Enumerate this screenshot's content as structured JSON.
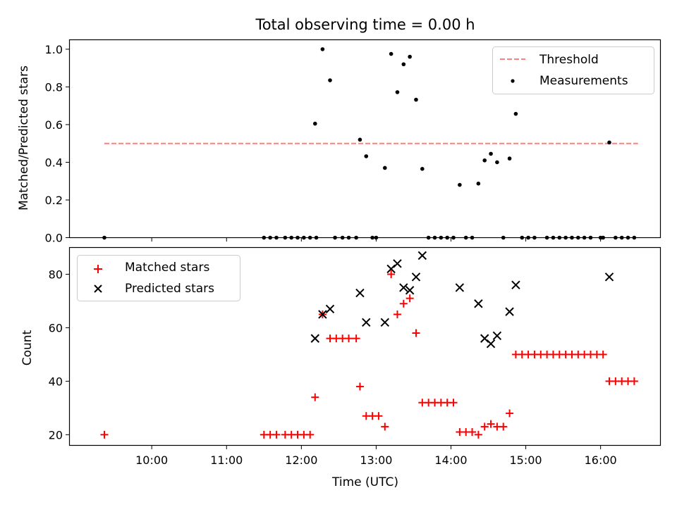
{
  "chart_data": [
    {
      "type": "scatter",
      "title": "Total observing time = 0.00 h",
      "xlabel": "",
      "ylabel": "Matched/Predicted stars",
      "ylim": [
        0,
        1.05
      ],
      "yticks": [
        "0.0",
        "0.2",
        "0.4",
        "0.6",
        "0.8",
        "1.0"
      ],
      "legend_position": "top-right",
      "threshold": {
        "name": "Threshold",
        "value": 0.5,
        "x_range": [
          "09:22",
          "16:30"
        ],
        "color": "#ff7f7f"
      },
      "series": [
        {
          "name": "Measurements",
          "color": "#000000",
          "points": [
            [
              "09:22",
              0.0
            ],
            [
              "11:30",
              0.0
            ],
            [
              "11:35",
              0.0
            ],
            [
              "11:40",
              0.0
            ],
            [
              "11:47",
              0.0
            ],
            [
              "11:52",
              0.0
            ],
            [
              "11:57",
              0.0
            ],
            [
              "12:02",
              0.0
            ],
            [
              "12:07",
              0.0
            ],
            [
              "12:12",
              0.0
            ],
            [
              "12:11",
              0.605
            ],
            [
              "12:17",
              1.0
            ],
            [
              "12:23",
              0.835
            ],
            [
              "12:27",
              0.0
            ],
            [
              "12:33",
              0.0
            ],
            [
              "12:38",
              0.0
            ],
            [
              "12:44",
              0.0
            ],
            [
              "12:47",
              0.52
            ],
            [
              "12:52",
              0.432
            ],
            [
              "12:57",
              0.0
            ],
            [
              "13:00",
              0.0
            ],
            [
              "13:07",
              0.37
            ],
            [
              "13:12",
              0.975
            ],
            [
              "13:17",
              0.772
            ],
            [
              "13:22",
              0.92
            ],
            [
              "13:27",
              0.96
            ],
            [
              "13:32",
              0.732
            ],
            [
              "13:37",
              0.365
            ],
            [
              "13:42",
              0.0
            ],
            [
              "13:47",
              0.0
            ],
            [
              "13:52",
              0.0
            ],
            [
              "13:57",
              0.0
            ],
            [
              "14:02",
              0.0
            ],
            [
              "14:07",
              0.28
            ],
            [
              "14:12",
              0.0
            ],
            [
              "14:17",
              0.0
            ],
            [
              "14:22",
              0.287
            ],
            [
              "14:27",
              0.41
            ],
            [
              "14:32",
              0.445
            ],
            [
              "14:37",
              0.4
            ],
            [
              "14:42",
              0.0
            ],
            [
              "14:47",
              0.42
            ],
            [
              "14:52",
              0.657
            ],
            [
              "14:57",
              0.0
            ],
            [
              "15:02",
              0.0
            ],
            [
              "15:07",
              0.0
            ],
            [
              "15:17",
              0.0
            ],
            [
              "15:22",
              0.0
            ],
            [
              "15:27",
              0.0
            ],
            [
              "15:32",
              0.0
            ],
            [
              "15:37",
              0.0
            ],
            [
              "15:42",
              0.0
            ],
            [
              "15:47",
              0.0
            ],
            [
              "15:52",
              0.0
            ],
            [
              "16:00",
              0.0
            ],
            [
              "16:02",
              0.0
            ],
            [
              "16:07",
              0.505
            ],
            [
              "16:12",
              0.0
            ],
            [
              "16:17",
              0.0
            ],
            [
              "16:22",
              0.0
            ],
            [
              "16:27",
              0.0
            ]
          ]
        }
      ]
    },
    {
      "type": "scatter",
      "title": "",
      "xlabel": "Time (UTC)",
      "ylabel": "Count",
      "ylim": [
        16,
        90
      ],
      "yticks": [
        "20",
        "40",
        "60",
        "80"
      ],
      "xticks": [
        "10:00",
        "11:00",
        "12:00",
        "13:00",
        "14:00",
        "15:00",
        "16:00"
      ],
      "legend_position": "top-left",
      "series": [
        {
          "name": "Matched stars",
          "marker": "plus",
          "color": "#ff0000",
          "points": [
            [
              "09:22",
              20
            ],
            [
              "11:30",
              20
            ],
            [
              "11:35",
              20
            ],
            [
              "11:40",
              20
            ],
            [
              "11:47",
              20
            ],
            [
              "11:52",
              20
            ],
            [
              "11:57",
              20
            ],
            [
              "12:02",
              20
            ],
            [
              "12:07",
              20
            ],
            [
              "12:11",
              34
            ],
            [
              "12:17",
              65
            ],
            [
              "12:23",
              56
            ],
            [
              "12:28",
              56
            ],
            [
              "12:33",
              56
            ],
            [
              "12:38",
              56
            ],
            [
              "12:44",
              56
            ],
            [
              "12:47",
              38
            ],
            [
              "12:52",
              27
            ],
            [
              "12:57",
              27
            ],
            [
              "13:02",
              27
            ],
            [
              "13:07",
              23
            ],
            [
              "13:12",
              80
            ],
            [
              "13:17",
              65
            ],
            [
              "13:22",
              69
            ],
            [
              "13:27",
              71
            ],
            [
              "13:32",
              58
            ],
            [
              "13:37",
              32
            ],
            [
              "13:42",
              32
            ],
            [
              "13:47",
              32
            ],
            [
              "13:52",
              32
            ],
            [
              "13:57",
              32
            ],
            [
              "14:02",
              32
            ],
            [
              "14:07",
              21
            ],
            [
              "14:12",
              21
            ],
            [
              "14:17",
              21
            ],
            [
              "14:22",
              20
            ],
            [
              "14:27",
              23
            ],
            [
              "14:32",
              24
            ],
            [
              "14:37",
              23
            ],
            [
              "14:42",
              23
            ],
            [
              "14:47",
              28
            ],
            [
              "14:52",
              50
            ],
            [
              "14:57",
              50
            ],
            [
              "15:02",
              50
            ],
            [
              "15:07",
              50
            ],
            [
              "15:12",
              50
            ],
            [
              "15:17",
              50
            ],
            [
              "15:22",
              50
            ],
            [
              "15:27",
              50
            ],
            [
              "15:32",
              50
            ],
            [
              "15:37",
              50
            ],
            [
              "15:42",
              50
            ],
            [
              "15:47",
              50
            ],
            [
              "15:52",
              50
            ],
            [
              "15:57",
              50
            ],
            [
              "16:02",
              50
            ],
            [
              "16:07",
              40
            ],
            [
              "16:12",
              40
            ],
            [
              "16:17",
              40
            ],
            [
              "16:22",
              40
            ],
            [
              "16:27",
              40
            ]
          ]
        },
        {
          "name": "Predicted stars",
          "marker": "x",
          "color": "#000000",
          "points": [
            [
              "12:11",
              56
            ],
            [
              "12:17",
              65
            ],
            [
              "12:23",
              67
            ],
            [
              "12:47",
              73
            ],
            [
              "12:52",
              62
            ],
            [
              "13:07",
              62
            ],
            [
              "13:12",
              82
            ],
            [
              "13:17",
              84
            ],
            [
              "13:22",
              75
            ],
            [
              "13:27",
              74
            ],
            [
              "13:32",
              79
            ],
            [
              "13:37",
              87
            ],
            [
              "14:07",
              75
            ],
            [
              "14:22",
              69
            ],
            [
              "14:27",
              56
            ],
            [
              "14:32",
              54
            ],
            [
              "14:37",
              57
            ],
            [
              "14:47",
              66
            ],
            [
              "14:52",
              76
            ],
            [
              "16:07",
              79
            ]
          ]
        }
      ]
    }
  ]
}
